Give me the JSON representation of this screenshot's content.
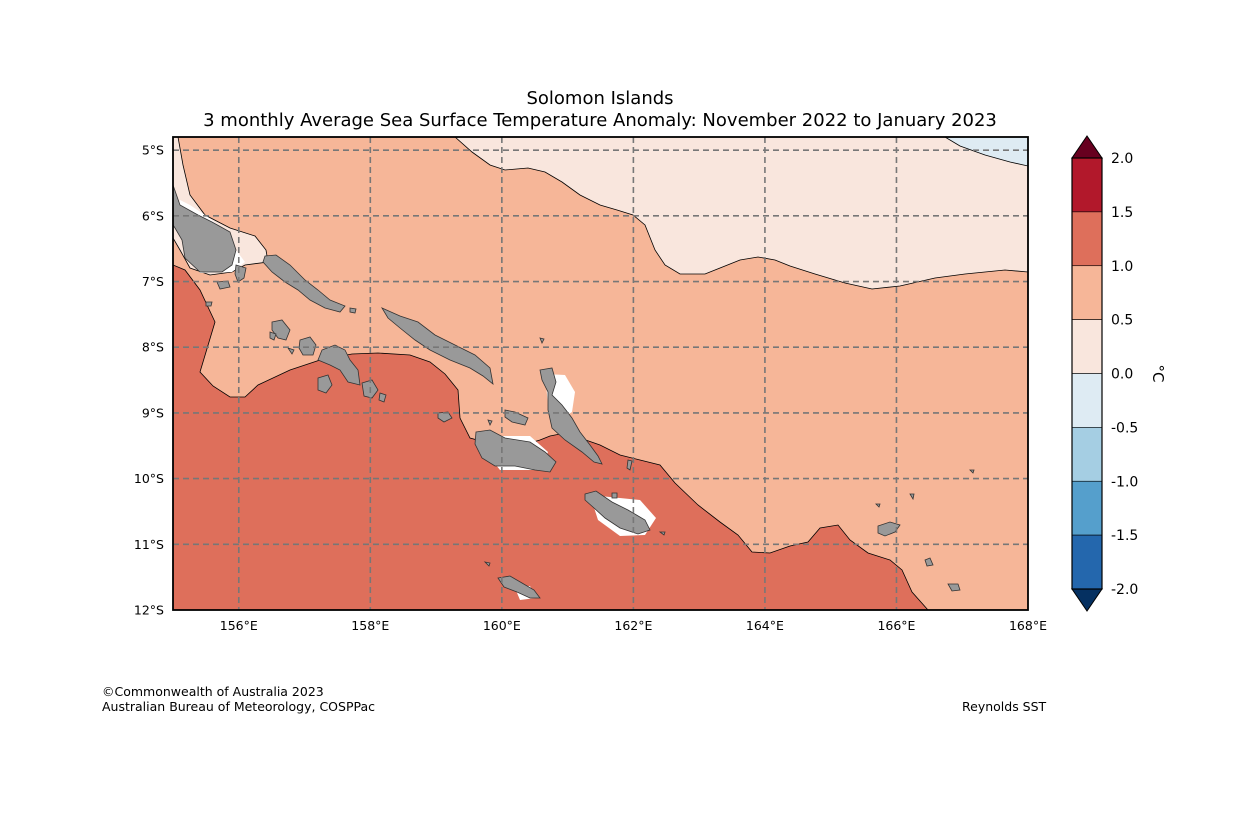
{
  "title": {
    "line1": "Solomon Islands",
    "line2": "3 monthly Average Sea Surface Temperature Anomaly: November 2022 to January 2023"
  },
  "map": {
    "lat_ticks": [
      "5°S",
      "6°S",
      "7°S",
      "8°S",
      "9°S",
      "10°S",
      "11°S",
      "12°S"
    ],
    "lon_ticks": [
      "156°E",
      "158°E",
      "160°E",
      "162°E",
      "164°E",
      "166°E",
      "168°E"
    ],
    "lat_range": [
      -12,
      -4.8
    ],
    "lon_range": [
      155,
      168
    ]
  },
  "colorbar": {
    "ticks": [
      "2.0",
      "1.5",
      "1.0",
      "0.5",
      "0.0",
      "-0.5",
      "-1.0",
      "-1.5",
      "-2.0"
    ],
    "unit": "°C",
    "colors": [
      "#b2182b",
      "#de6f5b",
      "#f6b698",
      "#f9e6dd",
      "#deebf3",
      "#a5cee3",
      "#559fcc",
      "#2467ad"
    ],
    "over_color": "#67001f",
    "under_color": "#053061"
  },
  "colors": {
    "land": "#999999",
    "anom_0_05": "#f9e6dd",
    "anom_05_10": "#f6b698",
    "anom_10_15": "#de6f5b",
    "anom_neg": "#deebf3"
  },
  "credits": {
    "copyright": "©Commonwealth of Australia 2023",
    "agency": "Australian Bureau of Meteorology, COSPPac",
    "source": "Reynolds SST"
  }
}
